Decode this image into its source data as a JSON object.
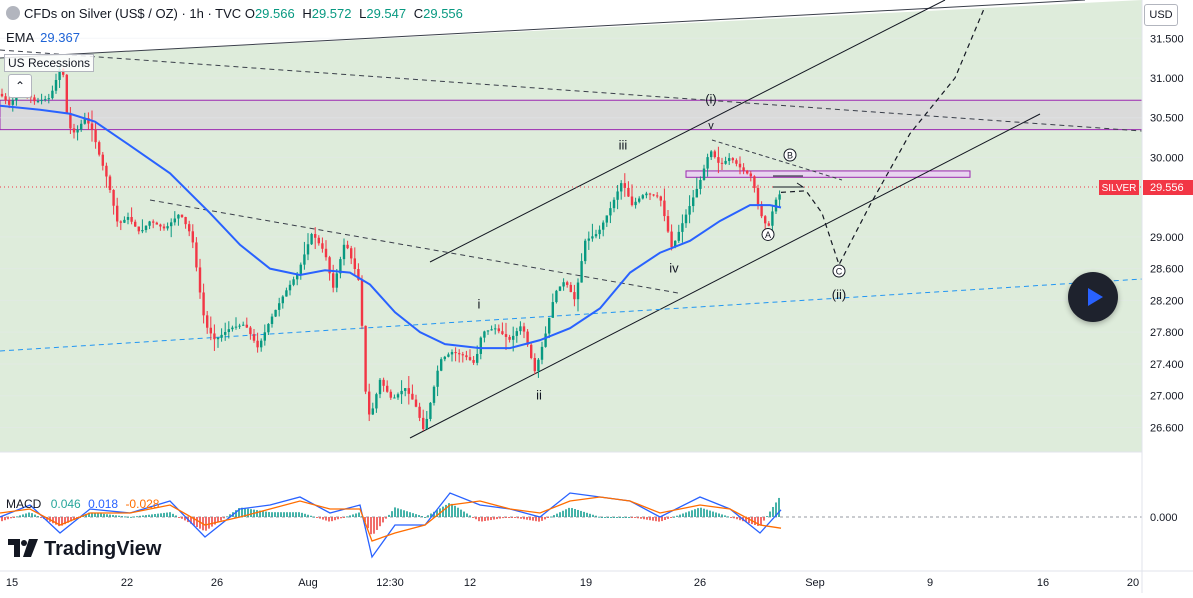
{
  "header": {
    "symbol_title": "CFDs on Silver (US$ / OZ) · 1h · TVC",
    "open_label": "O",
    "open_value": "29.566",
    "high_label": "H",
    "high_value": "29.572",
    "low_label": "L",
    "low_value": "29.547",
    "close_label": "C",
    "close_value": "29.556"
  },
  "indicators": {
    "ema_label": "EMA",
    "ema_value": "29.367",
    "recessions_label": "US Recessions",
    "macd_label": "MACD",
    "macd_hist": "0.046",
    "macd_line": "0.018",
    "macd_signal": "-0.028"
  },
  "currency": "USD",
  "logo_text": "TradingView",
  "price_axis": {
    "ticks": [
      "31.500",
      "31.000",
      "30.500",
      "30.000",
      "29.000",
      "28.600",
      "28.200",
      "27.800",
      "27.400",
      "27.000",
      "26.600"
    ],
    "tick_values": [
      31.5,
      31.0,
      30.5,
      30.0,
      29.0,
      28.6,
      28.2,
      27.8,
      27.4,
      27.0,
      26.6
    ],
    "last_price_label": "SILVER",
    "last_price_value": "29.556",
    "macd_zero": "0.000"
  },
  "time_axis": [
    "15",
    "22",
    "26",
    "Aug",
    "12:30",
    "12",
    "19",
    "26",
    "Sep",
    "9",
    "16",
    "20"
  ],
  "colors": {
    "up": "#089981",
    "down": "#f23645",
    "ema": "#2962ff",
    "macd": "#2962ff",
    "signal": "#ff6d00",
    "background_zone": "#dcebd9",
    "resistance_zone": "#dadada",
    "accent_purple": "#9c27b0",
    "price_label_bg": "#f23645"
  },
  "chart_data": {
    "type": "candlestick",
    "title": "CFDs on Silver (US$ / OZ) · 1h · TVC",
    "ylim": [
      26.25,
      31.85
    ],
    "x_ticks": [
      "15",
      "22",
      "26",
      "Aug",
      "12:30",
      "12",
      "19",
      "26",
      "Sep",
      "9",
      "16",
      "20"
    ],
    "price_path": [
      [
        0,
        30.8
      ],
      [
        10,
        30.65
      ],
      [
        20,
        30.9
      ],
      [
        35,
        30.7
      ],
      [
        50,
        30.75
      ],
      [
        62,
        31.2
      ],
      [
        68,
        30.4
      ],
      [
        75,
        30.3
      ],
      [
        85,
        30.5
      ],
      [
        92,
        30.35
      ],
      [
        100,
        30.0
      ],
      [
        108,
        29.7
      ],
      [
        118,
        29.15
      ],
      [
        128,
        29.25
      ],
      [
        140,
        29.05
      ],
      [
        150,
        29.2
      ],
      [
        165,
        29.1
      ],
      [
        180,
        29.3
      ],
      [
        192,
        29.0
      ],
      [
        200,
        28.3
      ],
      [
        205,
        27.9
      ],
      [
        215,
        27.7
      ],
      [
        230,
        27.85
      ],
      [
        245,
        27.9
      ],
      [
        258,
        27.6
      ],
      [
        270,
        27.95
      ],
      [
        285,
        28.3
      ],
      [
        298,
        28.55
      ],
      [
        312,
        29.05
      ],
      [
        325,
        28.8
      ],
      [
        333,
        28.35
      ],
      [
        345,
        28.95
      ],
      [
        352,
        28.7
      ],
      [
        360,
        28.4
      ],
      [
        365,
        27.1
      ],
      [
        370,
        26.7
      ],
      [
        380,
        27.2
      ],
      [
        392,
        26.95
      ],
      [
        405,
        27.1
      ],
      [
        415,
        26.9
      ],
      [
        424,
        26.55
      ],
      [
        432,
        27.0
      ],
      [
        440,
        27.45
      ],
      [
        452,
        27.55
      ],
      [
        465,
        27.5
      ],
      [
        475,
        27.4
      ],
      [
        482,
        27.8
      ],
      [
        495,
        27.85
      ],
      [
        510,
        27.7
      ],
      [
        522,
        27.9
      ],
      [
        535,
        27.3
      ],
      [
        545,
        27.75
      ],
      [
        555,
        28.3
      ],
      [
        565,
        28.45
      ],
      [
        575,
        28.2
      ],
      [
        585,
        28.95
      ],
      [
        598,
        29.05
      ],
      [
        610,
        29.35
      ],
      [
        622,
        29.7
      ],
      [
        632,
        29.4
      ],
      [
        645,
        29.55
      ],
      [
        660,
        29.5
      ],
      [
        672,
        28.85
      ],
      [
        680,
        29.1
      ],
      [
        690,
        29.4
      ],
      [
        700,
        29.7
      ],
      [
        710,
        30.1
      ],
      [
        720,
        29.9
      ],
      [
        730,
        30.0
      ],
      [
        742,
        29.85
      ],
      [
        752,
        29.75
      ],
      [
        760,
        29.3
      ],
      [
        768,
        29.1
      ],
      [
        775,
        29.45
      ],
      [
        781,
        29.56
      ]
    ],
    "ema_path": [
      [
        0,
        30.65
      ],
      [
        40,
        30.6
      ],
      [
        70,
        30.55
      ],
      [
        95,
        30.45
      ],
      [
        130,
        30.15
      ],
      [
        170,
        29.8
      ],
      [
        210,
        29.3
      ],
      [
        240,
        28.9
      ],
      [
        270,
        28.6
      ],
      [
        300,
        28.52
      ],
      [
        325,
        28.58
      ],
      [
        350,
        28.55
      ],
      [
        370,
        28.4
      ],
      [
        395,
        28.05
      ],
      [
        420,
        27.8
      ],
      [
        445,
        27.65
      ],
      [
        480,
        27.6
      ],
      [
        510,
        27.6
      ],
      [
        540,
        27.7
      ],
      [
        570,
        27.85
      ],
      [
        600,
        28.1
      ],
      [
        630,
        28.55
      ],
      [
        660,
        28.8
      ],
      [
        690,
        28.95
      ],
      [
        720,
        29.2
      ],
      [
        750,
        29.4
      ],
      [
        770,
        29.4
      ],
      [
        781,
        29.37
      ]
    ],
    "macd_series": [
      {
        "name": "MACD",
        "values": [
          [
            0,
            0.0
          ],
          [
            30,
            0.03
          ],
          [
            60,
            -0.04
          ],
          [
            90,
            0.02
          ],
          [
            130,
            0.01
          ],
          [
            170,
            0.04
          ],
          [
            205,
            -0.05
          ],
          [
            240,
            0.02
          ],
          [
            270,
            0.03
          ],
          [
            300,
            0.05
          ],
          [
            330,
            0.01
          ],
          [
            360,
            0.03
          ],
          [
            372,
            -0.1
          ],
          [
            395,
            -0.02
          ],
          [
            425,
            -0.02
          ],
          [
            450,
            0.06
          ],
          [
            480,
            0.03
          ],
          [
            510,
            0.02
          ],
          [
            540,
            0.0
          ],
          [
            570,
            0.06
          ],
          [
            600,
            0.05
          ],
          [
            630,
            0.04
          ],
          [
            660,
            0.0
          ],
          [
            700,
            0.05
          ],
          [
            730,
            0.02
          ],
          [
            760,
            -0.04
          ],
          [
            781,
            0.018
          ]
        ]
      },
      {
        "name": "Signal",
        "values": [
          [
            0,
            0.01
          ],
          [
            30,
            0.02
          ],
          [
            60,
            -0.02
          ],
          [
            90,
            0.01
          ],
          [
            130,
            0.01
          ],
          [
            170,
            0.03
          ],
          [
            205,
            -0.02
          ],
          [
            240,
            0.0
          ],
          [
            270,
            0.02
          ],
          [
            300,
            0.04
          ],
          [
            330,
            0.02
          ],
          [
            360,
            0.02
          ],
          [
            372,
            -0.06
          ],
          [
            395,
            -0.04
          ],
          [
            425,
            -0.02
          ],
          [
            450,
            0.03
          ],
          [
            480,
            0.04
          ],
          [
            510,
            0.02
          ],
          [
            540,
            0.01
          ],
          [
            570,
            0.04
          ],
          [
            600,
            0.05
          ],
          [
            630,
            0.04
          ],
          [
            660,
            0.01
          ],
          [
            700,
            0.03
          ],
          [
            730,
            0.02
          ],
          [
            760,
            -0.02
          ],
          [
            781,
            -0.028
          ]
        ]
      }
    ],
    "zones": [
      {
        "name": "resistance",
        "y_low": 30.35,
        "y_high": 30.72
      },
      {
        "name": "small-box",
        "y_low": 29.75,
        "y_high": 29.83
      }
    ],
    "wave_labels": [
      {
        "text": "(i)",
        "x": 711,
        "y": 30.68
      },
      {
        "text": "iii",
        "x": 623,
        "y": 30.1
      },
      {
        "text": "iv",
        "x": 674,
        "y": 28.55
      },
      {
        "text": "i",
        "x": 479,
        "y": 28.1
      },
      {
        "text": "ii",
        "x": 539,
        "y": 26.95
      },
      {
        "text": "B",
        "x": 790,
        "y": 29.98
      },
      {
        "text": "A",
        "x": 768,
        "y": 28.98
      },
      {
        "text": "C",
        "x": 839,
        "y": 28.52
      },
      {
        "text": "(ii)",
        "x": 839,
        "y": 28.22
      }
    ],
    "projection_path": [
      [
        781,
        29.56
      ],
      [
        806,
        29.58
      ],
      [
        822,
        29.3
      ],
      [
        839,
        28.65
      ],
      [
        870,
        29.4
      ],
      [
        910,
        30.3
      ],
      [
        955,
        31.0
      ],
      [
        985,
        31.9
      ]
    ]
  }
}
